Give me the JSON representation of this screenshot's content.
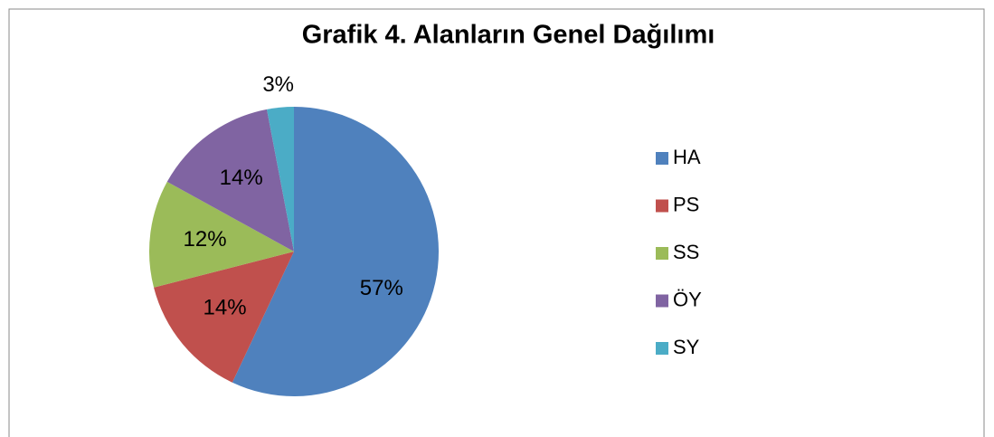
{
  "chart_data": {
    "type": "pie",
    "title": "Grafik 4. Alanların Genel Dağılımı",
    "categories": [
      "HA",
      "PS",
      "SS",
      "ÖY",
      "SY"
    ],
    "values": [
      57,
      14,
      12,
      14,
      3
    ],
    "value_labels": [
      "57%",
      "14%",
      "12%",
      "14%",
      "3%"
    ],
    "colors": [
      "#4f81bd",
      "#c0504d",
      "#9bbb59",
      "#8064a2",
      "#4bacc6"
    ],
    "legend": "right"
  }
}
